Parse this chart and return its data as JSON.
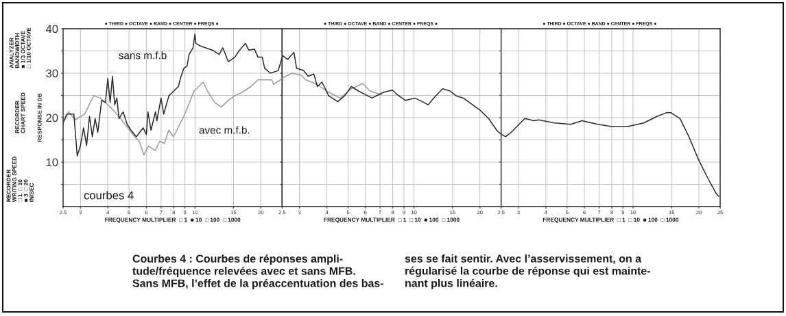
{
  "chart_data": [
    {
      "type": "line",
      "ylabel": "RESPONSE IN DB",
      "xlim": [
        2.5,
        25
      ],
      "xticks": [
        2.5,
        3,
        4,
        5,
        6,
        7,
        8,
        9,
        10,
        15,
        20
      ],
      "ylim": [
        0,
        40
      ],
      "yticks": [
        {
          "value": 5,
          "label": null
        },
        10,
        {
          "value": 15,
          "label": null
        },
        20,
        {
          "value": 25,
          "label": null
        },
        30,
        {
          "value": 35,
          "label": null
        },
        40
      ],
      "log": "x",
      "grid": true,
      "line_style": "solid",
      "series": [
        {
          "name": "sans m.f.b",
          "color": "#2b2b2b",
          "x": [
            2.5,
            2.6,
            2.8,
            2.9,
            3.0,
            3.1,
            3.2,
            3.3,
            3.4,
            3.5,
            3.6,
            3.75,
            3.9,
            4.0,
            4.1,
            4.2,
            4.3,
            4.4,
            4.5,
            4.7,
            4.9,
            5.1,
            5.4,
            5.8,
            6.0,
            6.1,
            6.3,
            6.6,
            6.7,
            7.0,
            7.2,
            7.6,
            8.0,
            8.4,
            8.6,
            8.9,
            9.2,
            9.4,
            9.8,
            10,
            10.1,
            10.5,
            11.2,
            12.0,
            12.9,
            13.4,
            14.2,
            15.2,
            16.0,
            17.0,
            17.6,
            18.7,
            19.4,
            20.3,
            20.8,
            22.1,
            24.0,
            25
          ],
          "values": [
            18.8,
            20.8,
            20.8,
            11.4,
            13.7,
            17.7,
            13.7,
            20.3,
            15.7,
            19.8,
            16.7,
            23.9,
            23.4,
            28.8,
            23.4,
            29.3,
            22.9,
            24.4,
            19.8,
            21.3,
            18.5,
            17.2,
            15.7,
            17.7,
            16.2,
            21.3,
            17.2,
            21.3,
            19.3,
            24.4,
            20.8,
            24.9,
            26,
            27,
            29,
            31.1,
            31.6,
            34.2,
            35.7,
            38.8,
            36.7,
            36.2,
            35.7,
            35.2,
            34.2,
            35.7,
            32.6,
            33.6,
            35.2,
            36.7,
            35.2,
            35.4,
            33.6,
            33.6,
            31.1,
            30,
            30.6,
            33.5
          ]
        },
        {
          "name": "avec m.f.b.",
          "color": "#9c9c9c",
          "x": [
            2.55,
            2.65,
            2.84,
            3.13,
            3.45,
            3.7,
            4.08,
            4.49,
            4.94,
            5.31,
            5.57,
            5.84,
            6.13,
            6.59,
            6.91,
            7.25,
            7.6,
            7.98,
            8.58,
            8.99,
            9.44,
            9.9,
            10.4,
            10.9,
            11.4,
            12.3,
            13.2,
            14.2,
            15.2,
            16.8,
            18.0,
            19.4,
            20.8,
            22.4,
            22.9,
            25
          ],
          "values": [
            19.5,
            21.3,
            19.5,
            20.8,
            24.9,
            24.4,
            22.5,
            20.3,
            17.7,
            15.7,
            14.7,
            11.6,
            13.6,
            12.6,
            14.7,
            14.2,
            17.2,
            15.7,
            18.8,
            20.8,
            23.4,
            26,
            27,
            28,
            26,
            23.4,
            22.4,
            23.9,
            24.9,
            26,
            27,
            28.5,
            28.5,
            28.5,
            27.5,
            28.8
          ]
        }
      ],
      "annotations": [
        "● THIRD ● OCTAVE ● BAND ● CENTER ● FREQS ●",
        "FREQUENCY MULTIPLIER  □ 1  ■ 10  □ 100  □ 1000",
        "courbes 4",
        "ANALYZER\nBANDWIDTH\n■ 1/3 OCTAVE\n□ 1/10 OCTAVE",
        "RECORDER\nCHART SPEED",
        "RECORDER\nWRITING SPEED\n□ 1  □ 10\n■ 3  □ 20\nIN/SEC",
        "Courbes 4 : Courbes de réponses ampli-\ntude/fréquence relevées avec et sans MFB.\nSans MFB, l’effet de la préaccentuation des bas-",
        "ses se fait sentir. Avec l’asservissement, on a\nrégularisé la courbe de réponse qui est mainte-\nnant plus linéaire."
      ]
    },
    {
      "type": "line",
      "xlim": [
        2.5,
        25
      ],
      "xticks": [
        2.5,
        3,
        4,
        5,
        6,
        7,
        8,
        9,
        10,
        15,
        20
      ],
      "ylim": [
        0,
        40
      ],
      "yticks": [
        {
          "value": 5,
          "label": null
        },
        10,
        {
          "value": 15,
          "label": null
        },
        20,
        {
          "value": 25,
          "label": null
        },
        30,
        {
          "value": 35,
          "label": null
        },
        40
      ],
      "tick_labels": "x",
      "log": "x",
      "grid": true,
      "line_style": "solid",
      "series": [
        {
          "color": "#2b2b2b",
          "x": [
            2.5,
            2.52,
            2.65,
            2.83,
            2.91,
            3.13,
            3.29,
            3.49,
            3.62,
            3.8,
            4.08,
            4.49,
            4.82,
            5.18,
            5.57,
            6.43,
            7.25,
            7.98,
            8.37,
            9.11,
            10.1,
            10.6,
            11.6,
            12.3,
            13.5,
            14.6,
            15.6,
            16.8,
            18.5,
            19.9,
            21.9,
            24.0,
            25
          ],
          "values": [
            33.5,
            33.9,
            33.1,
            34.7,
            31.1,
            30.6,
            29.3,
            29.8,
            27,
            28,
            24.9,
            23.6,
            24.9,
            27,
            26,
            24.4,
            25.7,
            26.2,
            25.2,
            23.9,
            24.4,
            23.9,
            22.9,
            24.4,
            26.5,
            26,
            24.9,
            24.4,
            22.9,
            21.8,
            19.8,
            17,
            16.3
          ]
        },
        {
          "color": "#9c9c9c",
          "x": [
            2.5,
            2.52,
            2.78,
            3.06,
            3.21,
            3.61,
            3.98,
            4.6,
            5.18,
            5.84,
            6.28,
            7.08
          ],
          "values": [
            28.8,
            29,
            30,
            29.5,
            28.5,
            27.5,
            26,
            24.4,
            26.5,
            27.7,
            26,
            25.2
          ]
        }
      ],
      "annotations": [
        "● THIRD ● OCTAVE ● BAND ● CENTER ● FREQS ●",
        "FREQUENCY MULTIPLIER  □ 1  □ 10  ■ 100  □ 1000"
      ]
    },
    {
      "type": "line",
      "xlim": [
        2.5,
        25
      ],
      "xticks": [
        2.5,
        3,
        4,
        5,
        6,
        7,
        8,
        9,
        10,
        15,
        20,
        25
      ],
      "ylim": [
        0,
        40
      ],
      "yticks": [
        {
          "value": 5,
          "label": null
        },
        10,
        {
          "value": 15,
          "label": null
        },
        20,
        {
          "value": 25,
          "label": null
        },
        30,
        {
          "value": 35,
          "label": null
        },
        40
      ],
      "tick_labels": "x",
      "log": "x",
      "grid": true,
      "line_style": "solid",
      "series": [
        {
          "color": "#2b2b2b",
          "x": [
            2.5,
            2.62,
            2.78,
            3.06,
            3.21,
            3.53,
            3.71,
            4.38,
            5.19,
            5.85,
            6.91,
            7.98,
            9.44,
            11.2,
            12.9,
            14.2,
            14.9,
            16.4,
            18.0,
            19.9,
            21.9,
            24.0,
            24.6
          ],
          "values": [
            16.3,
            15.7,
            16.7,
            18.8,
            19.8,
            19.3,
            19.5,
            18.8,
            18.5,
            19.3,
            18.5,
            18,
            18,
            18.8,
            20.3,
            21.1,
            21.1,
            19.8,
            15.7,
            10.6,
            6.5,
            2.9,
            2.3
          ]
        }
      ],
      "annotations": [
        "● THIRD ● OCTAVE ● BAND ● CENTER ● FREQS ●",
        "FREQUENCY MULTIPLIER  □ 1  □ 10  ■ 100  □ 1000"
      ]
    }
  ]
}
